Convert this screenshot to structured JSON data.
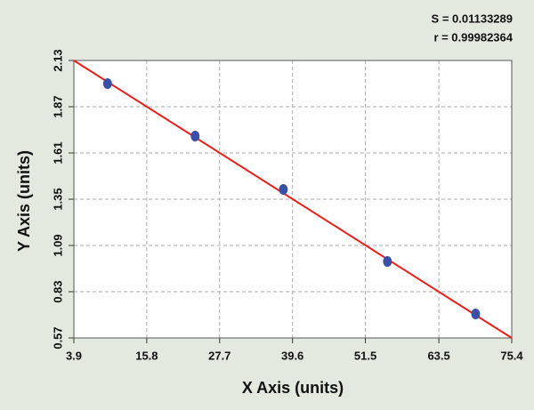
{
  "chart_data": {
    "type": "scatter",
    "x_label": "X Axis (units)",
    "y_label": "Y Axis (units)",
    "annotations": [
      "S = 0.01133289",
      "r = 0.99982364"
    ],
    "x": [
      9.4,
      23.7,
      38.1,
      55.1,
      69.5
    ],
    "values": [
      2.0,
      1.705,
      1.405,
      1.0,
      0.705
    ],
    "color": "#3a4fa8",
    "fit_line": {
      "x": [
        3.9,
        75.4
      ],
      "y": [
        2.13,
        0.57
      ],
      "color": "#e8201c"
    },
    "xlim": [
      3.9,
      75.4
    ],
    "xticks": [
      3.9,
      15.8,
      27.7,
      39.6,
      51.5,
      63.5,
      75.4
    ],
    "ylim": [
      0.57,
      2.13
    ],
    "yticks": [
      0.57,
      0.83,
      1.09,
      1.35,
      1.61,
      1.87,
      2.13
    ],
    "grid": true
  }
}
